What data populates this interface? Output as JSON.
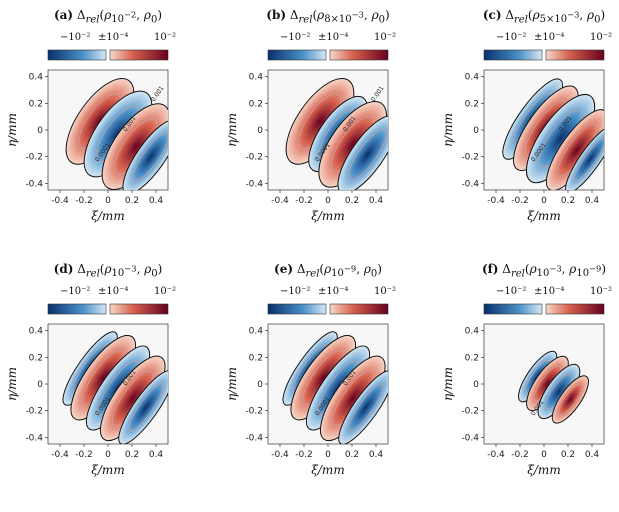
{
  "chart_data": [
    {
      "type": "heatmap",
      "panel_label": "(a)",
      "title_text": "Δrel(ρ10^-2, ρ0)",
      "colorbar_ticks": [
        "−10⁻²",
        "±10⁻⁴",
        "10⁻²"
      ],
      "xlabel": "ξ/mm",
      "ylabel": "η/mm",
      "xticks": [
        "-0.4",
        "-0.2",
        "0",
        "0.2",
        "0.4"
      ],
      "yticks": [
        "0.4",
        "0.2",
        "0",
        "-0.2",
        "-0.4"
      ],
      "xlim": [
        -0.5,
        0.5
      ],
      "ylim": [
        -0.45,
        0.45
      ],
      "contour_labels": [
        "0.0001",
        "0.001",
        "0.001"
      ]
    },
    {
      "type": "heatmap",
      "panel_label": "(b)",
      "title_text": "Δrel(ρ8×10^-3, ρ0)",
      "colorbar_ticks": [
        "−10⁻²",
        "±10⁻⁴",
        "10⁻²"
      ],
      "xlabel": "ξ/mm",
      "ylabel": "η/mm",
      "xticks": [
        "-0.4",
        "-0.2",
        "0",
        "0.2",
        "0.4"
      ],
      "yticks": [
        "0.4",
        "0.2",
        "0",
        "-0.2",
        "-0.4"
      ],
      "xlim": [
        -0.5,
        0.5
      ],
      "ylim": [
        -0.45,
        0.45
      ],
      "contour_labels": [
        "0.0001",
        "0.001",
        "0.001"
      ]
    },
    {
      "type": "heatmap",
      "panel_label": "(c)",
      "title_text": "Δrel(ρ5×10^-3, ρ0)",
      "colorbar_ticks": [
        "−10⁻²",
        "±10⁻⁴",
        "10⁻²"
      ],
      "xlabel": "ξ/mm",
      "ylabel": "η/mm",
      "xticks": [
        "-0.4",
        "-0.2",
        "0",
        "0.2",
        "0.4"
      ],
      "yticks": [
        "0.4",
        "0.2",
        "0",
        "-0.2",
        "-0.4"
      ],
      "xlim": [
        -0.5,
        0.5
      ],
      "ylim": [
        -0.45,
        0.45
      ],
      "contour_labels": [
        "0.0001",
        "0.001"
      ]
    },
    {
      "type": "heatmap",
      "panel_label": "(d)",
      "title_text": "Δrel(ρ10^-3, ρ0)",
      "colorbar_ticks": [
        "−10⁻²",
        "±10⁻⁴",
        "10⁻²"
      ],
      "xlabel": "ξ/mm",
      "ylabel": "η/mm",
      "xticks": [
        "-0.4",
        "-0.2",
        "0",
        "0.2",
        "0.4"
      ],
      "yticks": [
        "0.4",
        "0.2",
        "0",
        "-0.2",
        "-0.4"
      ],
      "xlim": [
        -0.5,
        0.5
      ],
      "ylim": [
        -0.45,
        0.45
      ],
      "contour_labels": [
        "0.0001",
        "0.001"
      ]
    },
    {
      "type": "heatmap",
      "panel_label": "(e)",
      "title_text": "Δrel(ρ10^-9, ρ0)",
      "colorbar_ticks": [
        "−10⁻²",
        "±10⁻⁴",
        "10⁻²"
      ],
      "xlabel": "ξ/mm",
      "ylabel": "η/mm",
      "xticks": [
        "-0.4",
        "-0.2",
        "0",
        "0.2",
        "0.4"
      ],
      "yticks": [
        "0.4",
        "0.2",
        "0",
        "-0.2",
        "-0.4"
      ],
      "xlim": [
        -0.5,
        0.5
      ],
      "ylim": [
        -0.45,
        0.45
      ],
      "contour_labels": [
        "0.0001",
        "0.001"
      ]
    },
    {
      "type": "heatmap",
      "panel_label": "(f)",
      "title_text": "Δrel(ρ10^-3, ρ10^-9)",
      "colorbar_ticks": [
        "−10⁻²",
        "±10⁻⁴",
        "10⁻²"
      ],
      "xlabel": "ξ/mm",
      "ylabel": "η/mm",
      "xticks": [
        "-0.4",
        "-0.2",
        "0",
        "0.2",
        "0.4"
      ],
      "yticks": [
        "0.4",
        "0.2",
        "0",
        "-0.2",
        "-0.4"
      ],
      "xlim": [
        -0.5,
        0.5
      ],
      "ylim": [
        -0.45,
        0.45
      ],
      "contour_labels": [
        "0.001"
      ]
    }
  ],
  "colors": {
    "neg_dark": "#08306b",
    "neg_mid": "#4a90c8",
    "neg_light": "#d6e8f4",
    "pos_light": "#f8d7c8",
    "pos_mid": "#d6604d",
    "pos_dark": "#67001f",
    "background": "#f7f7f7"
  }
}
